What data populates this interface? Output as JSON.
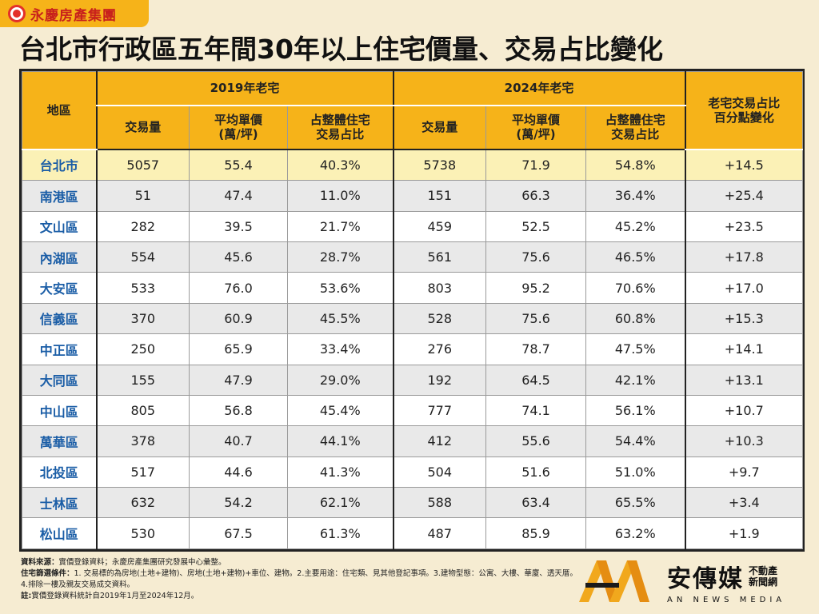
{
  "brand": {
    "name": "永慶房產集團"
  },
  "title": {
    "bold": "台北市行政區五年間30年以上",
    "light": "住宅價量、交易占比變化"
  },
  "table": {
    "district_header": "地區",
    "group_2019": "2019年老宅",
    "group_2024": "2024年老宅",
    "change_header_line1": "老宅交易占比",
    "change_header_line2": "百分點變化",
    "col_volume": "交易量",
    "col_price_line1": "平均單價",
    "col_price_line2": "(萬/坪)",
    "col_share_line1": "占整體住宅",
    "col_share_line2": "交易占比",
    "rows": [
      {
        "district": "台北市",
        "v2019": "5057",
        "p2019": "55.4",
        "s2019": "40.3%",
        "v2024": "5738",
        "p2024": "71.9",
        "s2024": "54.8%",
        "change": "+14.5"
      },
      {
        "district": "南港區",
        "v2019": "51",
        "p2019": "47.4",
        "s2019": "11.0%",
        "v2024": "151",
        "p2024": "66.3",
        "s2024": "36.4%",
        "change": "+25.4"
      },
      {
        "district": "文山區",
        "v2019": "282",
        "p2019": "39.5",
        "s2019": "21.7%",
        "v2024": "459",
        "p2024": "52.5",
        "s2024": "45.2%",
        "change": "+23.5"
      },
      {
        "district": "內湖區",
        "v2019": "554",
        "p2019": "45.6",
        "s2019": "28.7%",
        "v2024": "561",
        "p2024": "75.6",
        "s2024": "46.5%",
        "change": "+17.8"
      },
      {
        "district": "大安區",
        "v2019": "533",
        "p2019": "76.0",
        "s2019": "53.6%",
        "v2024": "803",
        "p2024": "95.2",
        "s2024": "70.6%",
        "change": "+17.0"
      },
      {
        "district": "信義區",
        "v2019": "370",
        "p2019": "60.9",
        "s2019": "45.5%",
        "v2024": "528",
        "p2024": "75.6",
        "s2024": "60.8%",
        "change": "+15.3"
      },
      {
        "district": "中正區",
        "v2019": "250",
        "p2019": "65.9",
        "s2019": "33.4%",
        "v2024": "276",
        "p2024": "78.7",
        "s2024": "47.5%",
        "change": "+14.1"
      },
      {
        "district": "大同區",
        "v2019": "155",
        "p2019": "47.9",
        "s2019": "29.0%",
        "v2024": "192",
        "p2024": "64.5",
        "s2024": "42.1%",
        "change": "+13.1"
      },
      {
        "district": "中山區",
        "v2019": "805",
        "p2019": "56.8",
        "s2019": "45.4%",
        "v2024": "777",
        "p2024": "74.1",
        "s2024": "56.1%",
        "change": "+10.7"
      },
      {
        "district": "萬華區",
        "v2019": "378",
        "p2019": "40.7",
        "s2019": "44.1%",
        "v2024": "412",
        "p2024": "55.6",
        "s2024": "54.4%",
        "change": "+10.3"
      },
      {
        "district": "北投區",
        "v2019": "517",
        "p2019": "44.6",
        "s2019": "41.3%",
        "v2024": "504",
        "p2024": "51.6",
        "s2024": "51.0%",
        "change": "+9.7"
      },
      {
        "district": "士林區",
        "v2019": "632",
        "p2019": "54.2",
        "s2019": "62.1%",
        "v2024": "588",
        "p2024": "63.4",
        "s2024": "65.5%",
        "change": "+3.4"
      },
      {
        "district": "松山區",
        "v2019": "530",
        "p2019": "67.5",
        "s2019": "61.3%",
        "v2024": "487",
        "p2024": "85.9",
        "s2024": "63.2%",
        "change": "+1.9"
      }
    ]
  },
  "notes": {
    "source_label": "資料來源：",
    "source_text": "實價登錄資料；永慶房產集團研究發展中心彙整。",
    "criteria_label": "住宅篩選條件：",
    "criteria_text": "1. 交易標的為房地(土地+建物)、房地(土地+建物)+車位、建物。2.主要用途：住宅類、見其他登記事項。3.建物型態：公寓、大樓、華廈、透天厝。",
    "criteria_text2": "4.排除一樓及親友交易成交資料。",
    "note_label": "註:",
    "note_text": "實價登錄資料統計自2019年1月至2024年12月。"
  },
  "watermark": {
    "name": "安傳媒",
    "side_line1": "不動產",
    "side_line2": "新聞網",
    "english": "AN NEWS MEDIA"
  },
  "colors": {
    "header": "#f6b319",
    "district": "#1a5da6",
    "highlight_row": "#fbf1b6",
    "alt_row": "#e9e9e9",
    "background": "#f6ecd2"
  }
}
